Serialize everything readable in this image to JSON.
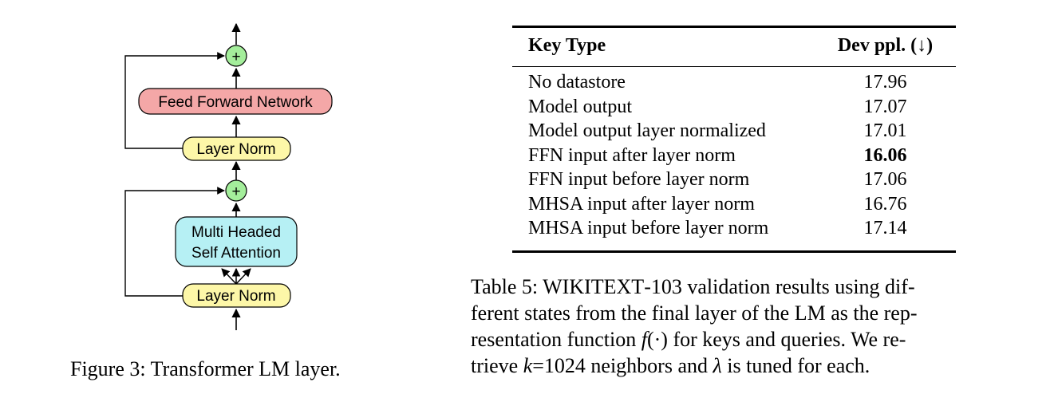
{
  "figure": {
    "plus_symbol": "+",
    "feed_forward_label": "Feed Forward Network",
    "layer_norm_label": "Layer Norm",
    "mhsa_label_line1": "Multi Headed",
    "mhsa_label_line2": "Self Attention",
    "colors": {
      "ffn": "#f4a7a7",
      "layer_norm": "#fdf7a8",
      "mhsa": "#b6f0f4",
      "plus": "#a4ee9b"
    }
  },
  "figure_caption": "Figure 3: Transformer LM layer.",
  "table": {
    "header": {
      "key_type": "Key Type",
      "dev_ppl": "Dev ppl. (↓)"
    },
    "rows": [
      {
        "key": "No datastore",
        "value": "17.96"
      },
      {
        "key": "Model output",
        "value": "17.07"
      },
      {
        "key": "Model output layer normalized",
        "value": "17.01"
      },
      {
        "key": "FFN input after layer norm",
        "value": "16.06"
      },
      {
        "key": "FFN input before layer norm",
        "value": "17.06"
      },
      {
        "key": "MHSA input after layer norm",
        "value": "16.76"
      },
      {
        "key": "MHSA input before layer norm",
        "value": "17.14"
      }
    ]
  },
  "table_caption": {
    "prefix": "Table 5:",
    "dataset_w": "W",
    "dataset_rest": "IKITEXT",
    "dataset_suffix": "-103",
    "line1_rest": " validation results using dif-",
    "line2": "ferent states from the final layer of the LM as the rep-",
    "line3_a": "resentation function ",
    "line3_f": "f",
    "line3_args": "(·)",
    "line3_b": " for keys and queries. We re-",
    "line4_a": "trieve ",
    "line4_k": "k",
    "line4_b": "=1024 neighbors and ",
    "line4_lambda": "λ",
    "line4_c": " is tuned for each."
  }
}
